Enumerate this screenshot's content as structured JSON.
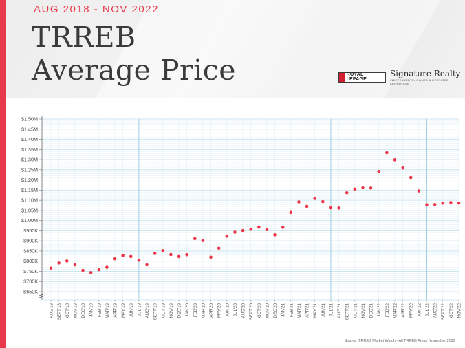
{
  "header": {
    "date_range": "AUG 2018 - NOV 2022",
    "title_line1": "TRREB",
    "title_line2": "Average Price",
    "logo_brand": "ROYAL LEPAGE",
    "logo_name": "Signature Realty",
    "logo_tagline": "INDEPENDENTLY OWNED & OPERATED BROKERAGE"
  },
  "source": "Source: TRREB Market Watch - All TRREB Areas November 2022",
  "colors": {
    "accent": "#e8384a",
    "marker": "#e8384a",
    "grid": "#c9e6f1"
  },
  "chart_data": {
    "type": "scatter",
    "title": "TRREB Average Price",
    "subtitle": "AUG 2018 - NOV 2022",
    "xlabel": "",
    "ylabel": "",
    "ylim": [
      650000,
      1500000
    ],
    "axis_break": true,
    "grid": true,
    "legend": "none",
    "y_ticks": [
      "$650K",
      "$700K",
      "$750K",
      "$800K",
      "$850K",
      "$900K",
      "$950K",
      "$1.00M",
      "$1.05M",
      "$1.10M",
      "$1.15M",
      "$1.20M",
      "$1.25M",
      "$1.30M",
      "$1.35M",
      "$1.40M",
      "$1.45M",
      "$1.50M"
    ],
    "categories": [
      "AUG'18",
      "SEPT'18",
      "OCT'18",
      "NOV'18",
      "DEC'18",
      "JAN'19",
      "FEB'19",
      "MAR'19",
      "APR'19",
      "MAY'19",
      "JUN'19",
      "JUL'19",
      "AUG'19",
      "SEPT'19",
      "OCT'19",
      "NOV'19",
      "DEC'19",
      "JAN'20",
      "FEB'20",
      "MAR'20",
      "APR'20",
      "MAY'20",
      "JUN'20",
      "JUL'20",
      "AUG'20",
      "SEPT'20",
      "OCT'20",
      "NOV'20",
      "DEC'20",
      "JAN'21",
      "FEB'21",
      "MAR'21",
      "APR'21",
      "MAY'21",
      "JUN'21",
      "JUL'21",
      "AUG'21",
      "SEPT'21",
      "OCT'21",
      "NOV'21",
      "DEC'21",
      "JAN'22",
      "FEB'22",
      "MAR'22",
      "APR'22",
      "MAY'22",
      "JUN'22",
      "JUL'22",
      "AUG'22",
      "SEPT'22",
      "OCT'22",
      "NOV'22"
    ],
    "values": [
      766000,
      791000,
      801000,
      782000,
      755000,
      744000,
      758000,
      770000,
      812000,
      828000,
      823000,
      805000,
      782000,
      838000,
      852000,
      833000,
      823000,
      832000,
      911000,
      902000,
      820000,
      864000,
      923000,
      943000,
      951000,
      957000,
      968000,
      956000,
      930000,
      967000,
      1040000,
      1092000,
      1070000,
      1109000,
      1093000,
      1063000,
      1062000,
      1137000,
      1155000,
      1161000,
      1160000,
      1242000,
      1334000,
      1299000,
      1259000,
      1212000,
      1146000,
      1078000,
      1079000,
      1086000,
      1089000,
      1086000
    ],
    "series": [
      {
        "name": "Average Price"
      }
    ]
  }
}
